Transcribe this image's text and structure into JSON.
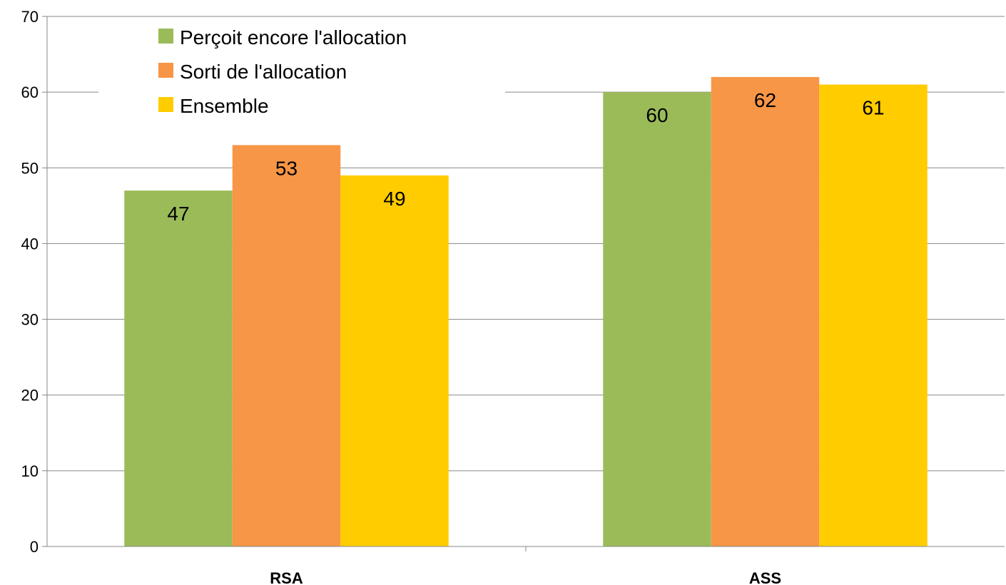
{
  "chart_data": {
    "type": "bar",
    "title": "",
    "xlabel": "",
    "ylabel": "",
    "categories": [
      "RSA",
      "ASS"
    ],
    "series": [
      {
        "name": "Perçoit encore l'allocation",
        "color": "#9bbb59",
        "values": [
          47,
          60
        ]
      },
      {
        "name": "Sorti de l'allocation",
        "color": "#f79646",
        "values": [
          53,
          62
        ]
      },
      {
        "name": "Ensemble",
        "color": "#ffcc00",
        "values": [
          49,
          61
        ]
      }
    ],
    "ylim": [
      0,
      70
    ],
    "yticks": [
      0,
      10,
      20,
      30,
      40,
      50,
      60,
      70
    ],
    "grid": true,
    "legend_position": "top-left",
    "data_labels": true
  }
}
